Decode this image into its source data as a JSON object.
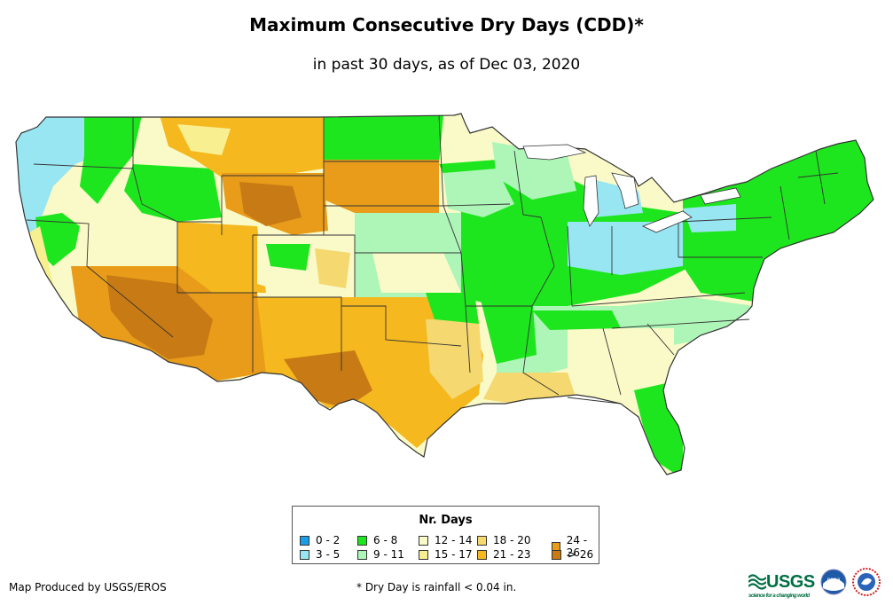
{
  "title": "Maximum Consecutive Dry Days (CDD)*",
  "subtitle": "in past 30 days, as of Dec 03, 2020",
  "legend": {
    "title": "Nr. Days",
    "items": [
      {
        "label": "0 - 2",
        "color": "#1a9fe6"
      },
      {
        "label": "3 - 5",
        "color": "#98e6f2"
      },
      {
        "label": "6 - 8",
        "color": "#1ee61e"
      },
      {
        "label": "9 - 11",
        "color": "#aef5b8"
      },
      {
        "label": "12 - 14",
        "color": "#fafac8"
      },
      {
        "label": "15 - 17",
        "color": "#f8f090"
      },
      {
        "label": "18 - 20",
        "color": "#f5d870"
      },
      {
        "label": "21 - 23",
        "color": "#f5b81e"
      },
      {
        "label": "24 - 26",
        "color": "#e89c1a"
      },
      {
        "label": "> 26",
        "color": "#c87a14"
      }
    ]
  },
  "credit": "Map Produced by USGS/EROS",
  "footnote": "* Dry Day is rainfall < 0.04 in.",
  "logos": {
    "usgs_text": "USGS",
    "usgs_tagline": "science for a changing world",
    "noaa_text": "noaa",
    "nws_icon": "nws-logo-icon"
  }
}
